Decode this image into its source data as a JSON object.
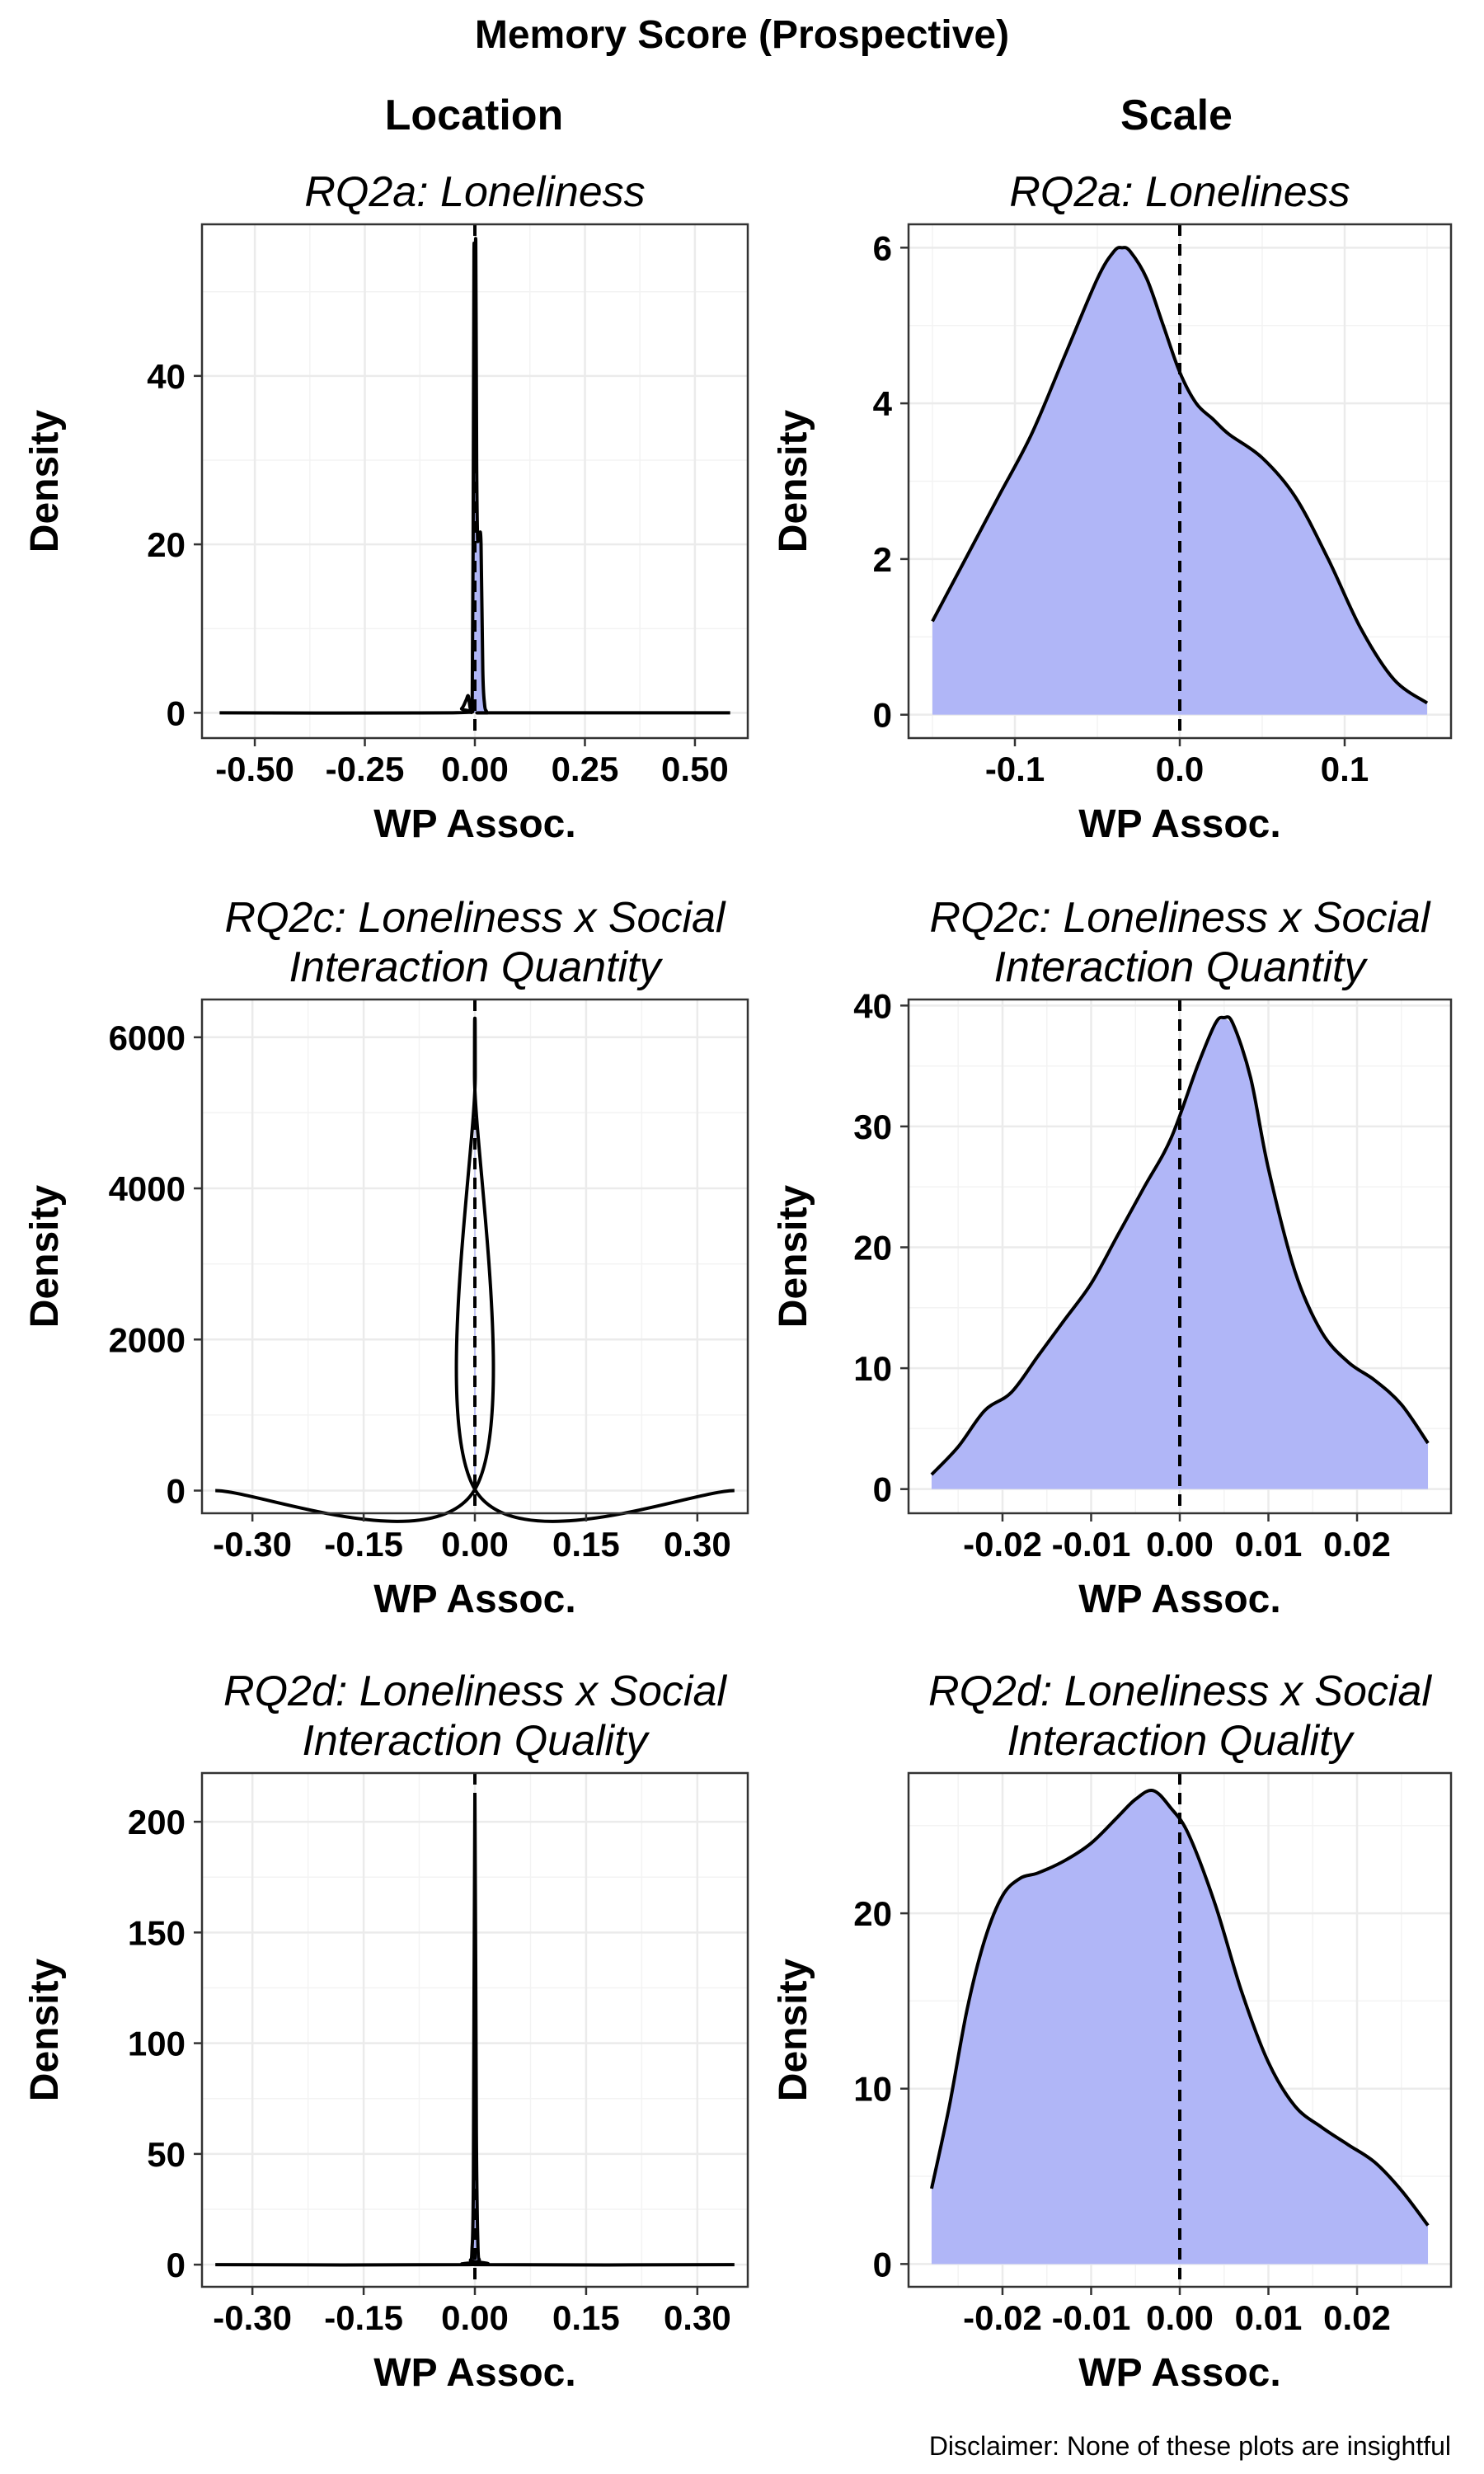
{
  "title": "Memory Score (Prospective)",
  "columns": [
    "Location",
    "Scale"
  ],
  "disclaimer": "Disclaimer: None of these plots are insightful",
  "colors": {
    "fill": "#b0b6f7",
    "line": "#000000",
    "grid": "#ebebeb",
    "border": "#333333"
  },
  "chart_data": [
    {
      "type": "area",
      "column": "Location",
      "subtitle": [
        "RQ2a: Loneliness"
      ],
      "xlabel": "WP Assoc.",
      "ylabel": "Density",
      "xlim": [
        -0.62,
        0.62
      ],
      "ylim": [
        -3,
        58
      ],
      "xticks": [
        -0.5,
        -0.25,
        0.0,
        0.25,
        0.5
      ],
      "xtick_labels": [
        "-0.50",
        "-0.25",
        "0.00",
        "0.25",
        "0.50"
      ],
      "yticks": [
        0,
        20,
        40
      ],
      "ytick_labels": [
        "0",
        "20",
        "40"
      ],
      "ref_x": 0.0,
      "fill_range": [
        -0.006,
        0.03
      ],
      "x": [
        -0.58,
        -0.05,
        -0.03,
        -0.02,
        -0.015,
        -0.01,
        -0.006,
        -0.004,
        -0.002,
        0.0,
        0.002,
        0.004,
        0.006,
        0.008,
        0.01,
        0.014,
        0.018,
        0.022,
        0.026,
        0.03,
        0.05,
        0.58
      ],
      "y": [
        0,
        0,
        0.5,
        1.5,
        2,
        0.5,
        2,
        20,
        55,
        45,
        56,
        30,
        21,
        21,
        21,
        20,
        5,
        1,
        0.2,
        0,
        0,
        0
      ]
    },
    {
      "type": "area",
      "column": "Scale",
      "subtitle": [
        "RQ2a: Loneliness"
      ],
      "xlabel": "WP Assoc.",
      "ylabel": "Density",
      "xlim": [
        -0.1645,
        0.1645
      ],
      "ylim": [
        -0.3,
        6.3
      ],
      "xticks": [
        -0.1,
        0.0,
        0.1
      ],
      "xtick_labels": [
        "-0.1",
        "0.0",
        "0.1"
      ],
      "yticks": [
        0,
        2,
        4,
        6
      ],
      "ytick_labels": [
        "0",
        "2",
        "4",
        "6"
      ],
      "ref_x": 0.0,
      "fill_range": [
        -0.15,
        0.15
      ],
      "x": [
        -0.15,
        -0.13,
        -0.11,
        -0.09,
        -0.07,
        -0.05,
        -0.04,
        -0.035,
        -0.03,
        -0.02,
        -0.01,
        0.0,
        0.01,
        0.02,
        0.03,
        0.05,
        0.07,
        0.09,
        0.11,
        0.13,
        0.15
      ],
      "y": [
        1.2,
        2.0,
        2.8,
        3.6,
        4.6,
        5.6,
        5.95,
        6.0,
        5.95,
        5.6,
        5.0,
        4.4,
        4.0,
        3.8,
        3.6,
        3.3,
        2.8,
        2.0,
        1.1,
        0.45,
        0.15
      ]
    },
    {
      "type": "area",
      "column": "Location",
      "subtitle": [
        "RQ2c: Loneliness x Social",
        "Interaction Quantity"
      ],
      "xlabel": "WP Assoc.",
      "ylabel": "Density",
      "xlim": [
        -0.368,
        0.368
      ],
      "ylim": [
        -300,
        6500
      ],
      "xticks": [
        -0.3,
        -0.15,
        0.0,
        0.15,
        0.3
      ],
      "xtick_labels": [
        "-0.30",
        "-0.15",
        "0.00",
        "0.15",
        "0.30"
      ],
      "yticks": [
        0,
        2000,
        4000,
        6000
      ],
      "ytick_labels": [
        "0",
        "2000",
        "4000",
        "6000"
      ],
      "ref_x": 0.0,
      "fill_range": [
        -0.001,
        0.001
      ],
      "x": [
        -0.35,
        -0.001,
        -0.0005,
        0.0,
        0.0005,
        0.001,
        0.35
      ],
      "y": [
        0,
        0,
        5500,
        6200,
        5500,
        0,
        0
      ]
    },
    {
      "type": "area",
      "column": "Scale",
      "subtitle": [
        "RQ2c: Loneliness x Social",
        "Interaction Quantity"
      ],
      "xlabel": "WP Assoc.",
      "ylabel": "Density",
      "xlim": [
        -0.0306,
        0.0306
      ],
      "ylim": [
        -2,
        40.5
      ],
      "xticks": [
        -0.02,
        -0.01,
        0.0,
        0.01,
        0.02
      ],
      "xtick_labels": [
        "-0.02",
        "-0.01",
        "0.00",
        "0.01",
        "0.02"
      ],
      "yticks": [
        0,
        10,
        20,
        30,
        40
      ],
      "ytick_labels": [
        "0",
        "10",
        "20",
        "30",
        "40"
      ],
      "ref_x": 0.0,
      "fill_range": [
        -0.028,
        0.028
      ],
      "x": [
        -0.028,
        -0.025,
        -0.022,
        -0.019,
        -0.016,
        -0.013,
        -0.01,
        -0.007,
        -0.004,
        -0.001,
        0.002,
        0.004,
        0.005,
        0.006,
        0.008,
        0.01,
        0.013,
        0.016,
        0.019,
        0.022,
        0.025,
        0.028
      ],
      "y": [
        1.2,
        3.5,
        6.5,
        8.0,
        11.0,
        14.0,
        17.0,
        21.0,
        25.0,
        29.0,
        35.0,
        38.5,
        39.0,
        38.5,
        34.0,
        26.5,
        18.0,
        13.0,
        10.5,
        9.0,
        7.0,
        3.8
      ]
    },
    {
      "type": "area",
      "column": "Location",
      "subtitle": [
        "RQ2d: Loneliness x Social",
        "Interaction Quality"
      ],
      "xlabel": "WP Assoc.",
      "ylabel": "Density",
      "xlim": [
        -0.368,
        0.368
      ],
      "ylim": [
        -10,
        222
      ],
      "xticks": [
        -0.3,
        -0.15,
        0.0,
        0.15,
        0.3
      ],
      "xtick_labels": [
        "-0.30",
        "-0.15",
        "0.00",
        "0.15",
        "0.30"
      ],
      "yticks": [
        0,
        50,
        100,
        150,
        200
      ],
      "ytick_labels": [
        "0",
        "50",
        "100",
        "150",
        "200"
      ],
      "ref_x": 0.0,
      "fill_range": [
        -0.006,
        0.006
      ],
      "x": [
        -0.35,
        -0.008,
        -0.006,
        -0.004,
        -0.002,
        0.0,
        0.002,
        0.004,
        0.006,
        0.008,
        0.35
      ],
      "y": [
        0,
        0,
        2,
        6,
        40,
        212,
        60,
        10,
        2,
        0,
        0
      ]
    },
    {
      "type": "area",
      "column": "Scale",
      "subtitle": [
        "RQ2d: Loneliness x Social",
        "Interaction Quality"
      ],
      "xlabel": "WP Assoc.",
      "ylabel": "Density",
      "xlim": [
        -0.0306,
        0.0306
      ],
      "ylim": [
        -1.3,
        28.0
      ],
      "xticks": [
        -0.02,
        -0.01,
        0.0,
        0.01,
        0.02
      ],
      "xtick_labels": [
        "-0.02",
        "-0.01",
        "0.00",
        "0.01",
        "0.02"
      ],
      "yticks": [
        0,
        10,
        20
      ],
      "ytick_labels": [
        "0",
        "10",
        "20"
      ],
      "ref_x": 0.0,
      "fill_range": [
        -0.028,
        0.028
      ],
      "x": [
        -0.028,
        -0.026,
        -0.024,
        -0.022,
        -0.02,
        -0.018,
        -0.016,
        -0.013,
        -0.01,
        -0.007,
        -0.005,
        -0.003,
        -0.001,
        0.001,
        0.004,
        0.007,
        0.01,
        0.013,
        0.016,
        0.019,
        0.022,
        0.025,
        0.028
      ],
      "y": [
        4.3,
        9.0,
        14.5,
        18.5,
        21.0,
        22.0,
        22.3,
        23.0,
        24.0,
        25.5,
        26.5,
        27.0,
        26.0,
        24.5,
        20.5,
        15.5,
        11.5,
        9.0,
        7.8,
        6.8,
        5.8,
        4.2,
        2.2
      ]
    }
  ]
}
